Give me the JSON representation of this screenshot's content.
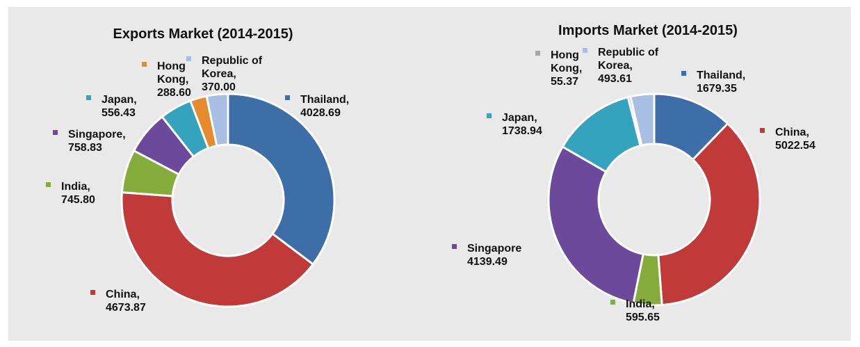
{
  "chart_data": [
    {
      "type": "pie",
      "subtype": "donut",
      "title": "Exports Market (2014-2015)",
      "categories": [
        "Thailand",
        "China",
        "India",
        "Singapore",
        "Japan",
        "Hong Kong",
        "Republic of Korea"
      ],
      "values": [
        4028.69,
        4673.87,
        745.8,
        758.83,
        556.43,
        288.6,
        370.0
      ],
      "labels": [
        [
          "Thailand,",
          "4028.69"
        ],
        [
          "China,",
          "4673.87"
        ],
        [
          "India,",
          "745.80"
        ],
        [
          "Singapore,",
          "758.83"
        ],
        [
          "Japan,",
          "556.43"
        ],
        [
          "Hong",
          "Kong,",
          "288.60"
        ],
        [
          "Republic of",
          "Korea,",
          "370.00"
        ]
      ],
      "colors": [
        "#3e6ea8",
        "#c03a3a",
        "#86ad3c",
        "#6b4a9b",
        "#35a3bd",
        "#e68a2e",
        "#a9bee3"
      ]
    },
    {
      "type": "pie",
      "subtype": "donut",
      "title": "Imports Market (2014-2015)",
      "categories": [
        "Thailand",
        "China",
        "India",
        "Singapore",
        "Japan",
        "Hong Kong",
        "Republic of Korea"
      ],
      "values": [
        1679.35,
        5022.54,
        595.65,
        4139.49,
        1738.94,
        55.37,
        493.61
      ],
      "labels": [
        [
          "Thailand,",
          "1679.35"
        ],
        [
          "China,",
          "5022.54"
        ],
        [
          "India,",
          "595.65"
        ],
        [
          "Singapore",
          "4139.49"
        ],
        [
          "Japan,",
          "1738.94"
        ],
        [
          "Hong",
          "Kong,",
          "55.37"
        ],
        [
          "Republic of",
          "Korea,",
          "493.61"
        ]
      ],
      "colors": [
        "#3e6ea8",
        "#c03a3a",
        "#86ad3c",
        "#6b4a9b",
        "#35a3bd",
        "#a6a6a6",
        "#a9bee3"
      ]
    }
  ]
}
